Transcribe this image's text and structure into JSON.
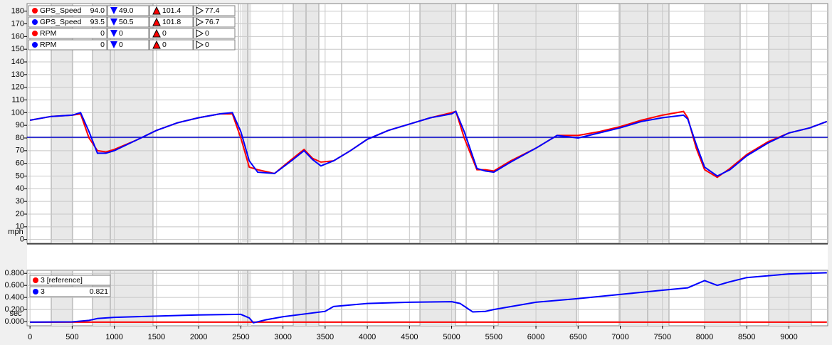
{
  "chart_data": [
    {
      "type": "line",
      "x": [
        0,
        250,
        500,
        600,
        700,
        800,
        900,
        1000,
        1250,
        1500,
        1750,
        2000,
        2250,
        2400,
        2500,
        2600,
        2700,
        2900,
        3100,
        3250,
        3350,
        3450,
        3600,
        3800,
        4000,
        4250,
        4500,
        4750,
        5000,
        5050,
        5150,
        5300,
        5400,
        5500,
        5700,
        6000,
        6250,
        6500,
        6750,
        7000,
        7250,
        7500,
        7750,
        7800,
        7900,
        8000,
        8150,
        8300,
        8500,
        8750,
        9000,
        9250,
        9450
      ],
      "series": [
        {
          "name": "GPS_Speed",
          "color": "#ff0000",
          "readout": [
            "94.0",
            "49.0",
            "101.4",
            "77.4"
          ],
          "values": [
            94,
            97,
            98,
            99,
            80,
            70,
            69,
            71,
            78,
            86,
            92,
            96,
            99,
            99,
            80,
            57,
            55,
            52,
            63,
            71,
            64,
            61,
            62,
            70,
            79,
            86,
            91,
            96,
            100,
            101,
            80,
            55,
            55,
            54,
            62,
            72,
            82,
            82,
            85,
            89,
            94,
            98,
            101,
            96,
            72,
            55,
            49,
            56,
            67,
            77,
            84,
            88,
            93
          ]
        },
        {
          "name": "GPS_Speed",
          "color": "#0000ff",
          "readout": [
            "93.5",
            "50.5",
            "101.8",
            "76.7"
          ],
          "values": [
            94,
            97,
            98,
            100,
            85,
            68,
            68,
            70,
            78,
            86,
            92,
            96,
            99,
            100,
            85,
            62,
            53,
            52,
            62,
            70,
            63,
            58,
            62,
            70,
            79,
            86,
            91,
            96,
            99,
            101,
            85,
            56,
            54,
            53,
            61,
            72,
            82,
            80,
            84,
            88,
            93,
            96,
            98,
            95,
            75,
            57,
            50,
            55,
            66,
            76,
            84,
            88,
            93
          ]
        }
      ],
      "other_legend": [
        {
          "name": "RPM",
          "color": "#ff0000",
          "readout": [
            "0",
            "0",
            "0",
            "0"
          ]
        },
        {
          "name": "RPM",
          "color": "#0000ff",
          "readout": [
            "0",
            "0",
            "0",
            "0"
          ]
        }
      ],
      "y_label": "mph",
      "xlim": [
        -35,
        9460
      ],
      "ylim": [
        -3,
        186
      ],
      "yticks": [
        0,
        10,
        20,
        30,
        40,
        50,
        60,
        70,
        80,
        90,
        100,
        110,
        120,
        130,
        140,
        150,
        160,
        170,
        180
      ],
      "grid": true
    },
    {
      "type": "line",
      "x": [
        0,
        500,
        700,
        800,
        1000,
        1500,
        2000,
        2500,
        2600,
        2650,
        2800,
        3000,
        3500,
        3600,
        4000,
        4500,
        5000,
        5100,
        5250,
        5400,
        5500,
        6000,
        6500,
        7000,
        7500,
        7800,
        8000,
        8150,
        8300,
        8500,
        9000,
        9450
      ],
      "series": [
        {
          "name": "3 [reference]",
          "color": "#ff0000",
          "values": [
            -0.01,
            -0.01,
            -0.01,
            -0.01,
            -0.01,
            -0.01,
            -0.01,
            -0.01,
            -0.01,
            -0.01,
            -0.01,
            -0.01,
            -0.01,
            -0.01,
            -0.01,
            -0.01,
            -0.01,
            -0.01,
            -0.01,
            -0.01,
            -0.01,
            -0.01,
            -0.01,
            -0.01,
            -0.01,
            -0.01,
            -0.01,
            -0.01,
            -0.01,
            -0.01,
            -0.01,
            -0.01
          ]
        },
        {
          "name": "3",
          "color": "#0000ff",
          "readout": "0.821",
          "values": [
            -0.01,
            -0.005,
            0.02,
            0.05,
            0.07,
            0.09,
            0.11,
            0.12,
            0.06,
            -0.02,
            0.03,
            0.08,
            0.17,
            0.25,
            0.3,
            0.32,
            0.33,
            0.3,
            0.16,
            0.17,
            0.2,
            0.32,
            0.38,
            0.45,
            0.52,
            0.56,
            0.68,
            0.6,
            0.66,
            0.73,
            0.79,
            0.81
          ]
        }
      ],
      "y_label": "sec",
      "xlim": [
        -35,
        9460
      ],
      "ylim": [
        -0.07,
        0.85
      ],
      "yticks": [
        {
          "value": 0,
          "label": "0.000"
        },
        {
          "value": 0.2,
          "label": "0.200"
        },
        {
          "value": 0.4,
          "label": "0.400"
        },
        {
          "value": 0.6,
          "label": "0.600"
        },
        {
          "value": 0.8,
          "label": "0.800"
        }
      ],
      "xticks": [
        0,
        500,
        1000,
        1500,
        2000,
        2500,
        3000,
        3500,
        4000,
        4500,
        5000,
        5500,
        6000,
        6500,
        7000,
        7500,
        8000,
        8500,
        9000
      ],
      "grid": true
    }
  ]
}
